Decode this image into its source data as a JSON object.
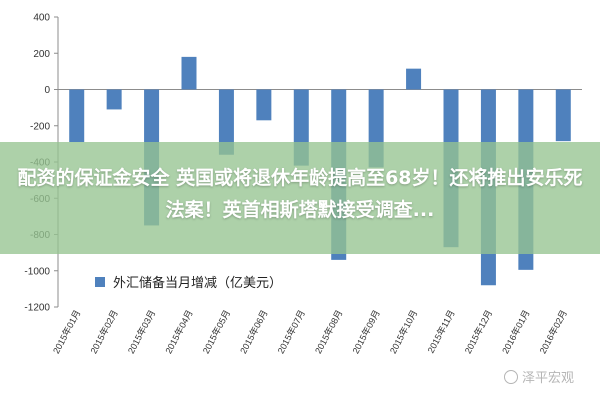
{
  "chart_data": {
    "type": "bar",
    "categories": [
      "2015年01月",
      "2015年02月",
      "2015年03月",
      "2015年04月",
      "2015年05月",
      "2015年06月",
      "2015年07月",
      "2015年08月",
      "2015年09月",
      "2015年10月",
      "2015年11月",
      "2015年12月",
      "2016年01月",
      "2016年02月"
    ],
    "series": [
      {
        "name": "外汇储备当月增减（亿美元）",
        "values": [
          -290,
          -110,
          -750,
          180,
          -360,
          -170,
          -420,
          -940,
          -430,
          115,
          -870,
          -1080,
          -995,
          -285
        ]
      }
    ],
    "yticks": [
      400,
      200,
      0,
      -200,
      -400,
      -600,
      -800,
      -1000,
      -1200
    ],
    "ylim": [
      -1200,
      400
    ],
    "grid": false,
    "legend_position": "bottom-left",
    "bar_color": "#4f81bd"
  },
  "overlay": {
    "headline": "配资的保证金安全 英国或将退休年龄提高至68岁！还将推出安乐死法案！英首相斯塔默接受调查...",
    "banner_color": "#96c491"
  },
  "watermark": {
    "text": "泽平宏观"
  }
}
